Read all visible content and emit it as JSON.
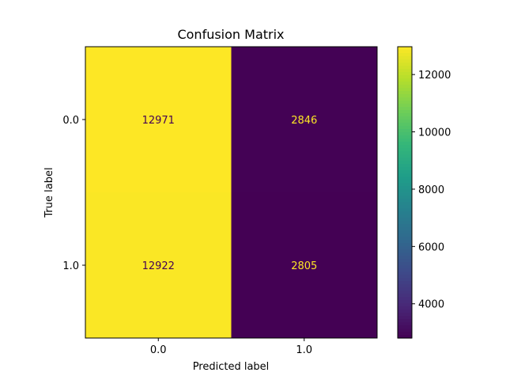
{
  "chart_data": {
    "type": "heatmap",
    "title": "Confusion Matrix",
    "xlabel": "Predicted label",
    "ylabel": "True label",
    "x_categories": [
      "0.0",
      "1.0"
    ],
    "y_categories": [
      "0.0",
      "1.0"
    ],
    "values": [
      [
        12971,
        2846
      ],
      [
        12922,
        2805
      ]
    ],
    "colormap": "viridis",
    "colorbar": {
      "range": [
        2805,
        12971
      ],
      "ticks": [
        4000,
        6000,
        8000,
        10000,
        12000
      ]
    },
    "text_color_on_light": "#440154",
    "text_color_on_dark": "#fde725",
    "grid": false
  }
}
